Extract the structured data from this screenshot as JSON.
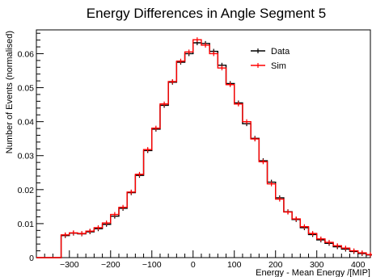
{
  "chart_data": {
    "type": "histogram",
    "title": "Energy Differences in Angle Segment 5",
    "xlabel": "Energy - Mean Energy /[MIP]",
    "ylabel": "Number of Events (normalised)",
    "xlim": [
      -380,
      430
    ],
    "ylim": [
      0,
      0.067
    ],
    "x_ticks": [
      -300,
      -200,
      -100,
      0,
      100,
      200,
      300,
      400
    ],
    "y_ticks": [
      0,
      0.01,
      0.02,
      0.03,
      0.04,
      0.05,
      0.06
    ],
    "y_tick_labels": [
      "0",
      "0.01",
      "0.02",
      "0.03",
      "0.04",
      "0.05",
      "0.06"
    ],
    "bin_width": 20,
    "bin_edges_start": -380,
    "legend_position": "top-right",
    "grid": false,
    "series": [
      {
        "name": "Data",
        "color": "#000000",
        "values": [
          0,
          0,
          0,
          0.0065,
          0.0072,
          0.007,
          0.0076,
          0.0085,
          0.0098,
          0.0122,
          0.0145,
          0.0191,
          0.0242,
          0.0315,
          0.0378,
          0.0448,
          0.0516,
          0.0575,
          0.06,
          0.0632,
          0.063,
          0.0607,
          0.0566,
          0.0512,
          0.0455,
          0.0394,
          0.0351,
          0.0285,
          0.0222,
          0.0176,
          0.0135,
          0.0112,
          0.0088,
          0.0068,
          0.0052,
          0.0042,
          0.0032,
          0.0025,
          0.0018,
          0.0012,
          0.0008
        ]
      },
      {
        "name": "Sim",
        "color": "#ff0000",
        "values": [
          0,
          0,
          0,
          0.0067,
          0.0073,
          0.0071,
          0.0078,
          0.0088,
          0.0102,
          0.0127,
          0.0148,
          0.0193,
          0.0245,
          0.0318,
          0.0381,
          0.0452,
          0.0518,
          0.0578,
          0.0605,
          0.0641,
          0.0625,
          0.06,
          0.0558,
          0.0509,
          0.0452,
          0.04,
          0.0349,
          0.0282,
          0.0217,
          0.0172,
          0.0134,
          0.0114,
          0.0091,
          0.0071,
          0.0055,
          0.0045,
          0.0035,
          0.0028,
          0.002,
          0.0014,
          0.0009
        ]
      }
    ]
  }
}
